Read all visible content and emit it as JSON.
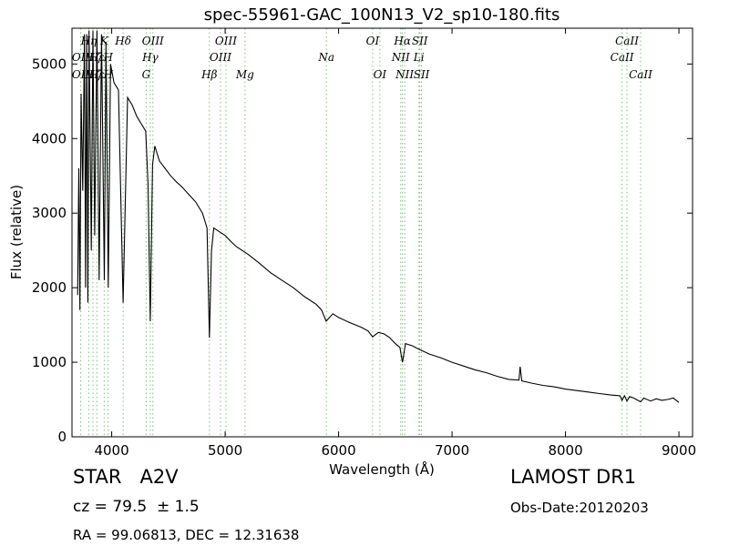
{
  "chart_data": {
    "type": "line",
    "title": "spec-55961-GAC_100N13_V2_sp10-180.fits",
    "xlabel": "Wavelength (Å)",
    "ylabel": "Flux (relative)",
    "xlim": [
      3650,
      9120
    ],
    "ylim": [
      0,
      5480
    ],
    "x_ticks": [
      4000,
      5000,
      6000,
      7000,
      8000,
      9000
    ],
    "y_ticks": [
      0,
      1000,
      2000,
      3000,
      4000,
      5000
    ],
    "grid": false,
    "series": [
      {
        "x": [
          3700,
          3710,
          3720,
          3730,
          3745,
          3760,
          3770,
          3780,
          3790,
          3800,
          3820,
          3835,
          3850,
          3870,
          3889,
          3910,
          3935,
          3950,
          3970,
          3990,
          4020,
          4060,
          4101,
          4140,
          4180,
          4220,
          4260,
          4300,
          4320,
          4340,
          4360,
          4380,
          4420,
          4470,
          4520,
          4570,
          4620,
          4680,
          4740,
          4800,
          4840,
          4861,
          4880,
          4900,
          4950,
          5000,
          5050,
          5100,
          5200,
          5300,
          5400,
          5500,
          5600,
          5700,
          5800,
          5850,
          5890,
          5950,
          6000,
          6100,
          6200,
          6260,
          6300,
          6350,
          6400,
          6450,
          6500,
          6540,
          6563,
          6590,
          6650,
          6700,
          6800,
          6900,
          7000,
          7100,
          7200,
          7300,
          7400,
          7500,
          7590,
          7600,
          7615,
          7700,
          7800,
          7900,
          8000,
          8100,
          8200,
          8300,
          8400,
          8480,
          8498,
          8520,
          8542,
          8565,
          8600,
          8662,
          8690,
          8750,
          8800,
          8850,
          8900,
          8950,
          9000
        ],
        "y": [
          1900,
          3600,
          1700,
          4600,
          3300,
          5400,
          2000,
          5400,
          1800,
          5450,
          2500,
          5450,
          2700,
          5450,
          2100,
          5400,
          2100,
          5300,
          2000,
          5000,
          4750,
          4650,
          1800,
          4550,
          4450,
          4300,
          4200,
          4100,
          3400,
          1550,
          3650,
          3900,
          3700,
          3600,
          3500,
          3420,
          3350,
          3250,
          3150,
          3000,
          2800,
          1330,
          2500,
          2800,
          2750,
          2700,
          2620,
          2550,
          2450,
          2330,
          2200,
          2100,
          2000,
          1880,
          1780,
          1700,
          1550,
          1650,
          1600,
          1530,
          1470,
          1420,
          1340,
          1400,
          1380,
          1330,
          1250,
          1200,
          1000,
          1250,
          1220,
          1180,
          1110,
          1060,
          1000,
          950,
          900,
          860,
          810,
          770,
          760,
          940,
          750,
          720,
          690,
          670,
          640,
          620,
          600,
          580,
          560,
          550,
          490,
          550,
          480,
          540,
          520,
          470,
          520,
          480,
          510,
          490,
          500,
          520,
          460
        ]
      }
    ],
    "lines": [
      {
        "wave": 3727,
        "upper": "OII",
        "lower": "OII"
      },
      {
        "wave": 3798,
        "upper": "Hη",
        "lower": "Hη"
      },
      {
        "wave": 3835,
        "upper": "Hζ",
        "lower": "Hζ"
      },
      {
        "wave": 3869,
        "upper": "Hε",
        "lower": "Hε"
      },
      {
        "wave": 3934,
        "upper": "K",
        "lower": "K"
      },
      {
        "wave": 3969,
        "upper": "H",
        "lower": "H"
      },
      {
        "wave": 4101,
        "upper": "Hδ",
        "lower": "Hδ"
      },
      {
        "wave": 4304,
        "upper": "G",
        "lower": "G"
      },
      {
        "wave": 4340,
        "upper": "Hγ",
        "lower": "Hγ"
      },
      {
        "wave": 4363,
        "upper": "OIII",
        "lower": "OIII"
      },
      {
        "wave": 4861,
        "upper": "Hβ",
        "lower": "Hβ"
      },
      {
        "wave": 4959,
        "upper": "OIII",
        "lower": "OIII"
      },
      {
        "wave": 5007,
        "upper": "OIII",
        "lower": "OIII"
      },
      {
        "wave": 5175,
        "upper": "Mg",
        "lower": "Mg"
      },
      {
        "wave": 5893,
        "upper": "Na",
        "lower": "Na"
      },
      {
        "wave": 6300,
        "upper": "OI",
        "lower": "OI"
      },
      {
        "wave": 6364,
        "upper": "OI",
        "lower": "OI"
      },
      {
        "wave": 6548,
        "upper": "NII",
        "lower": "NII"
      },
      {
        "wave": 6563,
        "upper": "Hα",
        "lower": "Hα"
      },
      {
        "wave": 6583,
        "upper": "NII",
        "lower": "NII"
      },
      {
        "wave": 6708,
        "upper": "Li",
        "lower": "Li"
      },
      {
        "wave": 6716,
        "upper": "SII",
        "lower": "SII"
      },
      {
        "wave": 6731,
        "upper": "SII",
        "lower": "SII"
      },
      {
        "wave": 8498,
        "upper": "CaII",
        "lower": "CaII"
      },
      {
        "wave": 8542,
        "upper": "CaII",
        "lower": "CaII"
      },
      {
        "wave": 8662,
        "upper": "CaII",
        "lower": "CaII"
      }
    ],
    "line_color": "#000000",
    "marker_color": "#7fbf7f"
  },
  "labels": [
    {
      "text": "Hη",
      "wave": 3798,
      "tier": 0
    },
    {
      "text": "K",
      "wave": 3934,
      "tier": 0
    },
    {
      "text": "Hδ",
      "wave": 4101,
      "tier": 0
    },
    {
      "text": "OIII",
      "wave": 4363,
      "tier": 0
    },
    {
      "text": "OIII",
      "wave": 5007,
      "tier": 0
    },
    {
      "text": "OI",
      "wave": 6300,
      "tier": 0
    },
    {
      "text": "Hα",
      "wave": 6563,
      "tier": 0
    },
    {
      "text": "SII",
      "wave": 6716,
      "tier": 0
    },
    {
      "text": "CaII",
      "wave": 8542,
      "tier": 0
    },
    {
      "text": "OII",
      "wave": 3727,
      "tier": 1
    },
    {
      "text": "Hζ",
      "wave": 3835,
      "tier": 1
    },
    {
      "text": "Hε",
      "wave": 3869,
      "tier": 1
    },
    {
      "text": "H",
      "wave": 3969,
      "tier": 1
    },
    {
      "text": "Hγ",
      "wave": 4340,
      "tier": 1
    },
    {
      "text": "OIII",
      "wave": 4959,
      "tier": 1
    },
    {
      "text": "Na",
      "wave": 5893,
      "tier": 1
    },
    {
      "text": "NII",
      "wave": 6548,
      "tier": 1
    },
    {
      "text": "Li",
      "wave": 6708,
      "tier": 1
    },
    {
      "text": "CaII",
      "wave": 8498,
      "tier": 1
    },
    {
      "text": "OII",
      "wave": 3727,
      "tier": 2
    },
    {
      "text": "Hζ",
      "wave": 3835,
      "tier": 2
    },
    {
      "text": "Hε",
      "wave": 3869,
      "tier": 2
    },
    {
      "text": "H",
      "wave": 3969,
      "tier": 2
    },
    {
      "text": "G",
      "wave": 4304,
      "tier": 2
    },
    {
      "text": "Hβ",
      "wave": 4861,
      "tier": 2
    },
    {
      "text": "Mg",
      "wave": 5175,
      "tier": 2
    },
    {
      "text": "OI",
      "wave": 6364,
      "tier": 2
    },
    {
      "text": "NII",
      "wave": 6583,
      "tier": 2
    },
    {
      "text": "SII",
      "wave": 6731,
      "tier": 2
    },
    {
      "text": "CaII",
      "wave": 8662,
      "tier": 2
    }
  ],
  "info": {
    "class_line": "STAR   A2V",
    "cz_line": "cz = 79.5  ± 1.5",
    "radec_line": "RA = 99.06813, DEC = 12.31638",
    "survey": "LAMOST DR1",
    "obs_date": "Obs-Date:20120203"
  }
}
